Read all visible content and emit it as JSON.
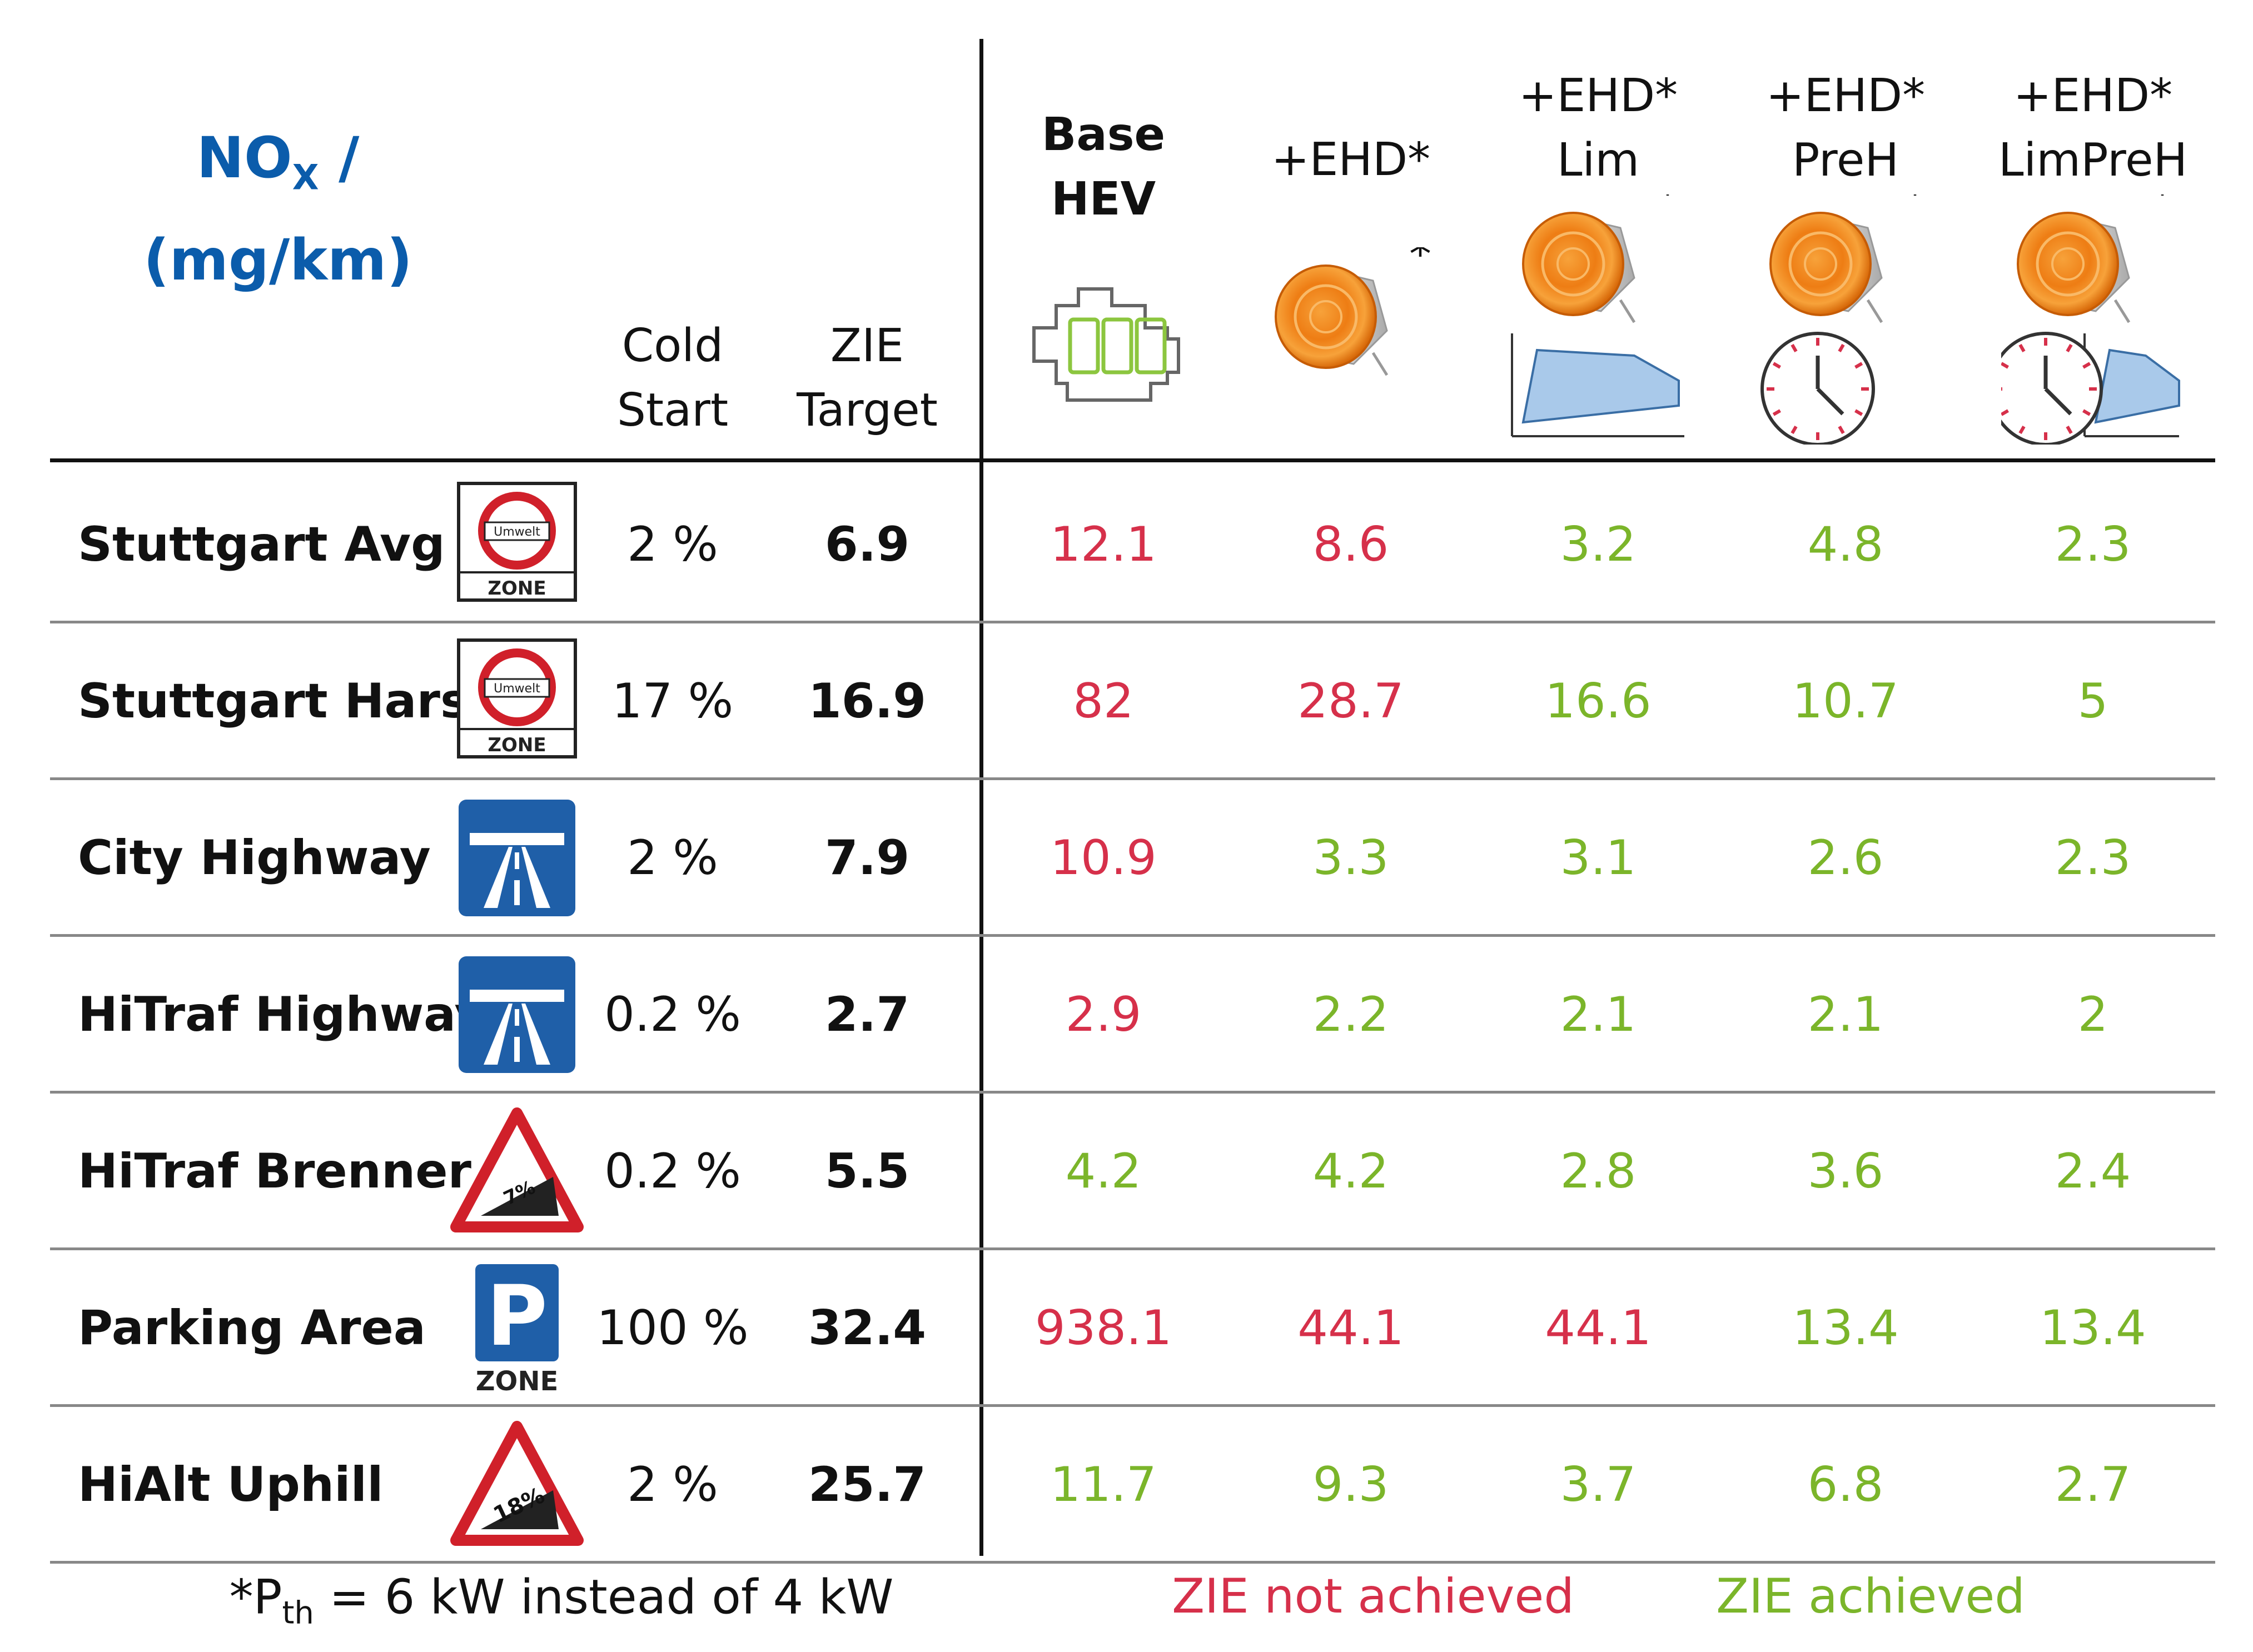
{
  "chart_data": {
    "type": "table",
    "title": "NOX / (mg/km)",
    "title_unit": "(mg/km)",
    "columns": {
      "cold_start": "Cold Start",
      "zie_target": "ZIE Target",
      "variants": [
        {
          "label_line1": "Base",
          "label_line2": "HEV",
          "icon": "engine-battery-icon"
        },
        {
          "label_line1": "+EHD*",
          "label_line2": "",
          "icon": "heated-disc-icon"
        },
        {
          "label_line1": "+EHD*",
          "label_line2": "Lim",
          "icon": "heated-disc-limit-curve-icon"
        },
        {
          "label_line1": "+EHD*",
          "label_line2": "PreH",
          "icon": "heated-disc-clock-icon"
        },
        {
          "label_line1": "+EHD*",
          "label_line2": "LimPreH",
          "icon": "heated-disc-clock-curve-icon"
        }
      ]
    },
    "rows": [
      {
        "label": "Stuttgart Avg",
        "sign": "umwelt-zone-sign",
        "cold_start": "2 %",
        "target": "6.9",
        "values": [
          "12.1",
          "8.6",
          "3.2",
          "4.8",
          "2.3"
        ],
        "achieved": [
          false,
          false,
          true,
          true,
          true
        ]
      },
      {
        "label": "Stuttgart Harsh",
        "sign": "umwelt-zone-sign",
        "cold_start": "17 %",
        "target": "16.9",
        "values": [
          "82",
          "28.7",
          "16.6",
          "10.7",
          "5"
        ],
        "achieved": [
          false,
          false,
          true,
          true,
          true
        ]
      },
      {
        "label": "City Highway",
        "sign": "autobahn-sign",
        "cold_start": "2 %",
        "target": "7.9",
        "values": [
          "10.9",
          "3.3",
          "3.1",
          "2.6",
          "2.3"
        ],
        "achieved": [
          false,
          true,
          true,
          true,
          true
        ]
      },
      {
        "label": "HiTraf Highway",
        "sign": "autobahn-sign",
        "cold_start": "0.2 %",
        "target": "2.7",
        "values": [
          "2.9",
          "2.2",
          "2.1",
          "2.1",
          "2"
        ],
        "achieved": [
          false,
          true,
          true,
          true,
          true
        ]
      },
      {
        "label": "HiTraf Brenner",
        "sign": "gradient-warning-sign",
        "sign_text": "7%",
        "cold_start": "0.2 %",
        "target": "5.5",
        "values": [
          "4.2",
          "4.2",
          "2.8",
          "3.6",
          "2.4"
        ],
        "achieved": [
          true,
          true,
          true,
          true,
          true
        ]
      },
      {
        "label": "Parking Area",
        "sign": "parking-zone-sign",
        "cold_start": "100 %",
        "target": "32.4",
        "values": [
          "938.1",
          "44.1",
          "44.1",
          "13.4",
          "13.4"
        ],
        "achieved": [
          false,
          false,
          false,
          true,
          true
        ]
      },
      {
        "label": "HiAlt Uphill",
        "sign": "gradient-warning-sign",
        "sign_text": "18%",
        "cold_start": "2 %",
        "target": "25.7",
        "values": [
          "11.7",
          "9.3",
          "3.7",
          "6.8",
          "2.7"
        ],
        "achieved": [
          true,
          true,
          true,
          true,
          true
        ]
      }
    ],
    "legend": {
      "not_achieved": "ZIE not achieved",
      "achieved": "ZIE achieved"
    },
    "footnote": {
      "prefix": "*P",
      "subscript": "th",
      "suffix": " = 6 kW instead of 4 kW"
    }
  },
  "sign_text": {
    "umwelt": "Umwelt",
    "zone": "ZONE",
    "parking": "P"
  },
  "colors": {
    "title": "#0b5cab",
    "not_achieved": "#d6304a",
    "achieved": "#7bb52a",
    "sign_blue": "#1f5fa8",
    "sign_red": "#d0202a"
  }
}
